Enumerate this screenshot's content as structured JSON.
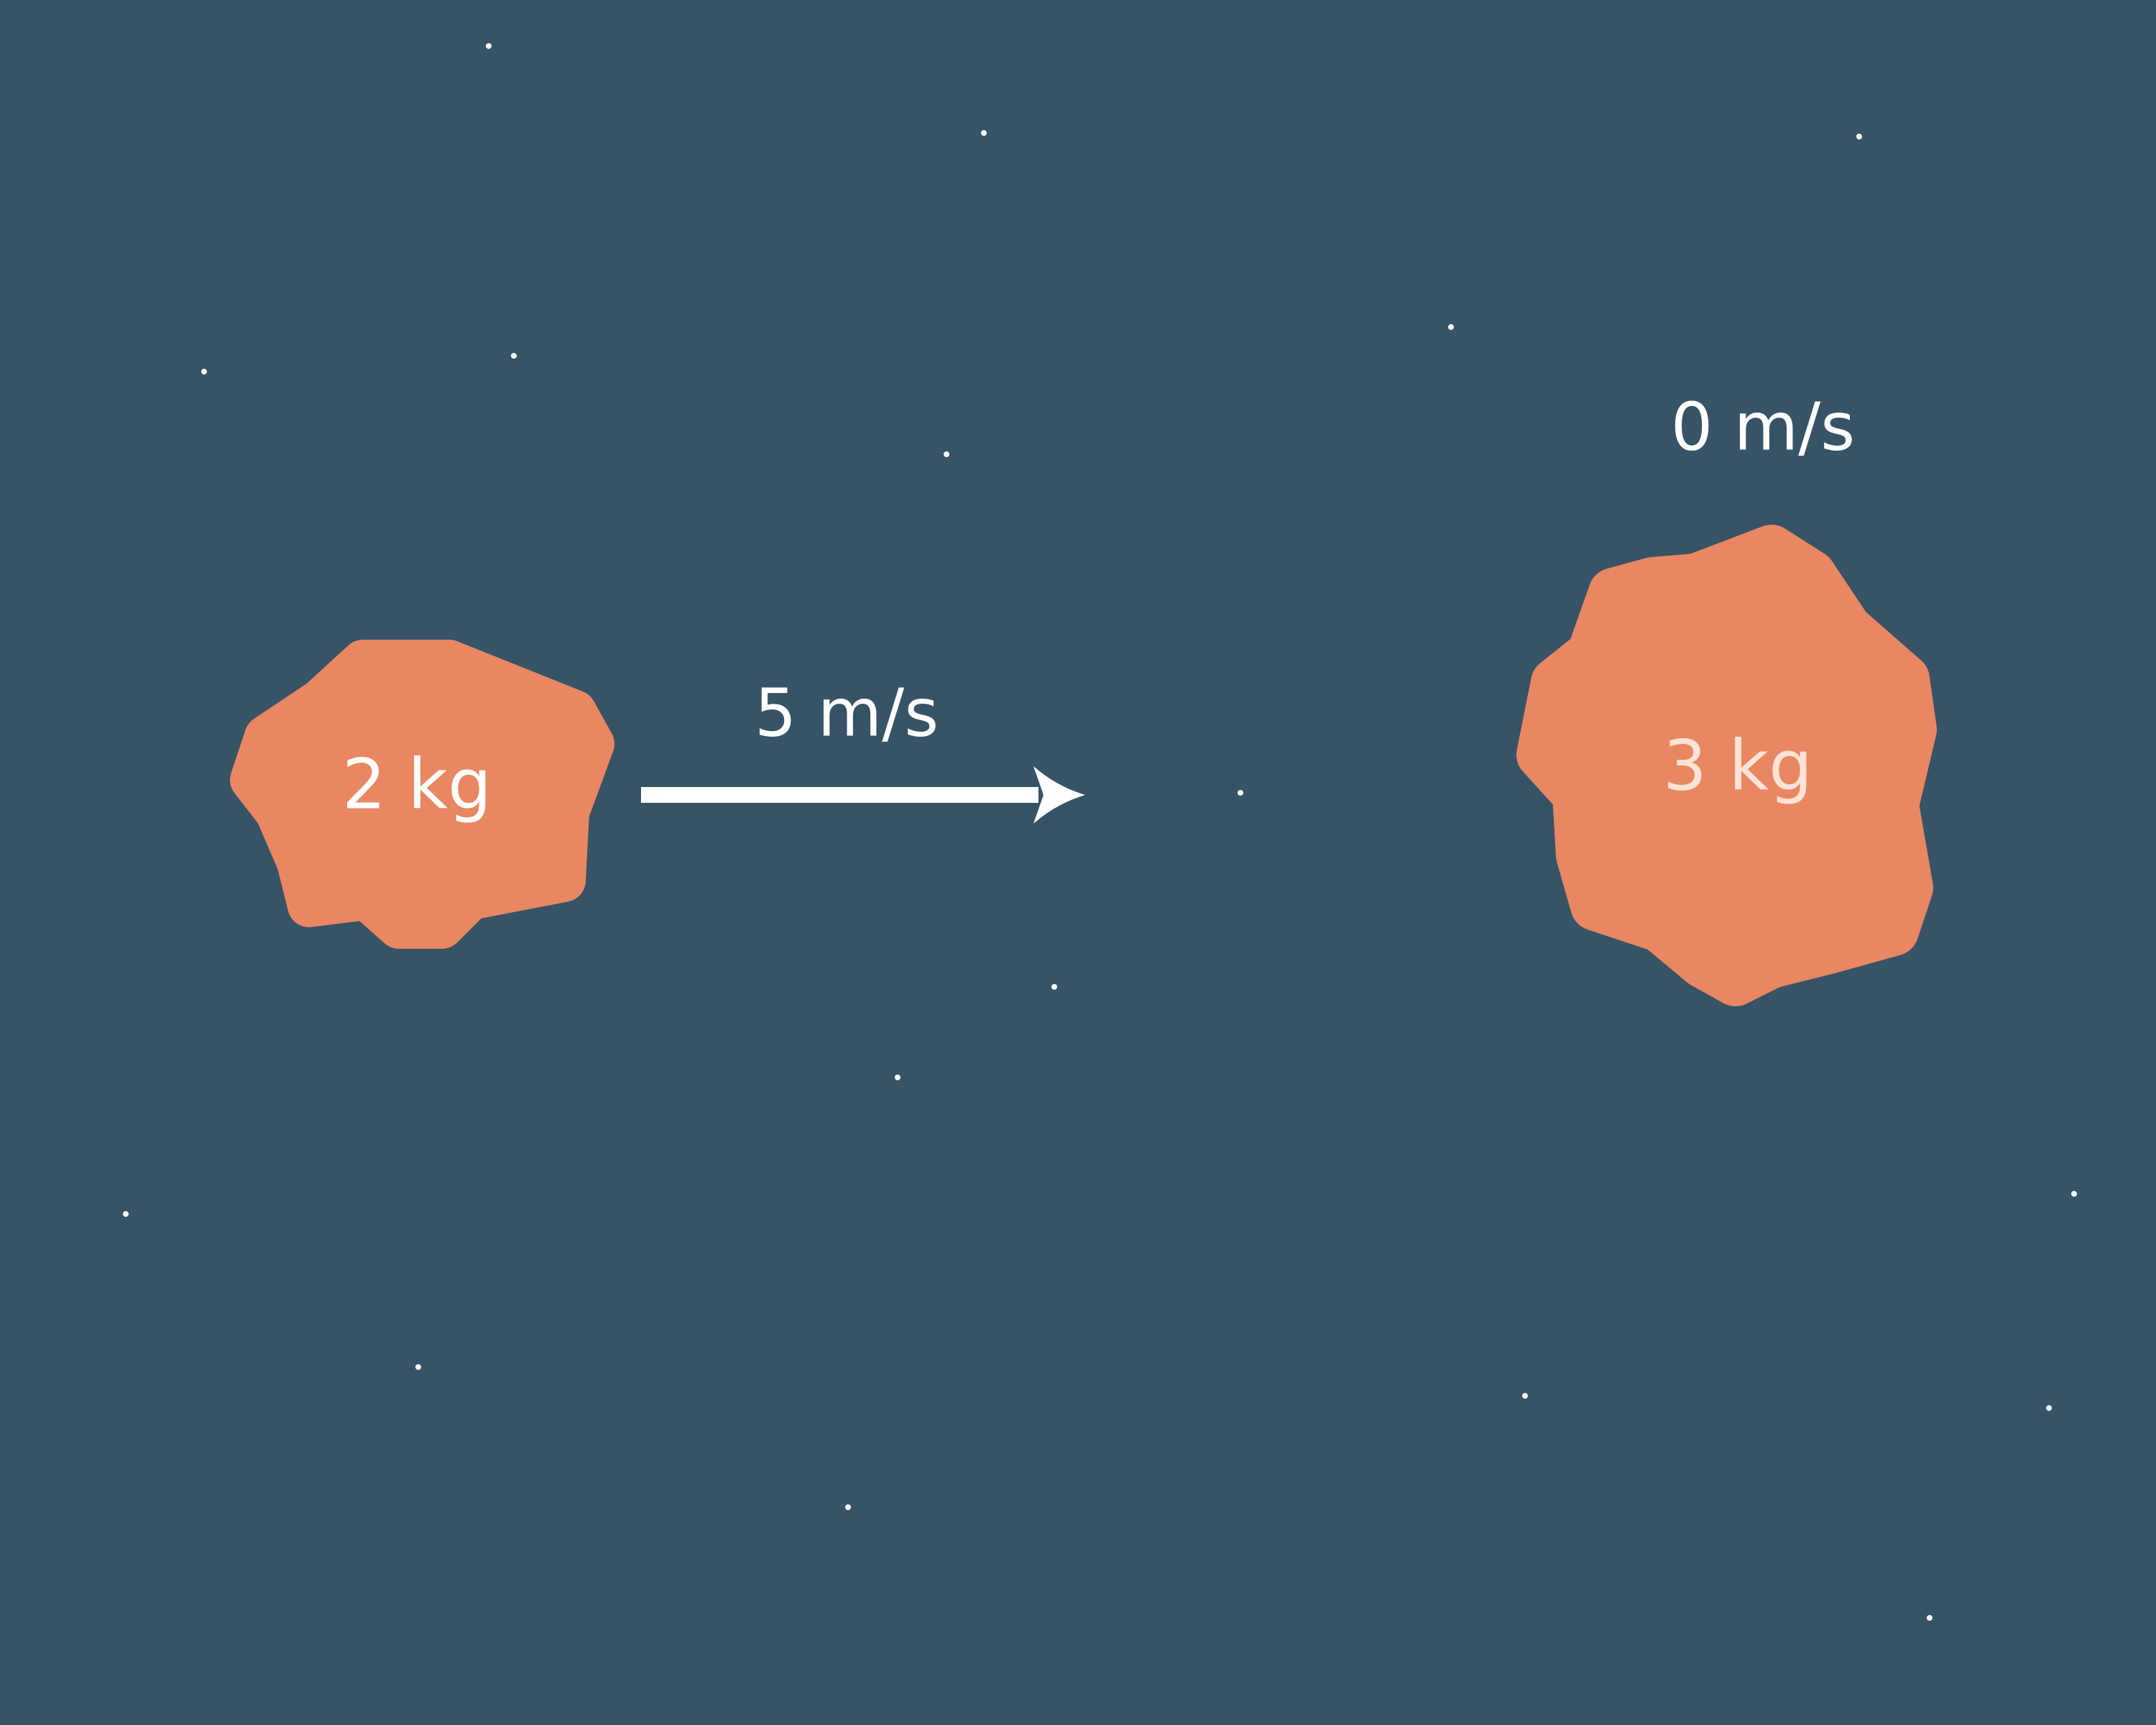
{
  "colors": {
    "background": "#375366",
    "body": "#E98762",
    "text": "#FFFFFF",
    "heavy_text": "#FBE3D6",
    "star": "#FFFFFF"
  },
  "bodies": [
    {
      "mass_label": "2 kg",
      "velocity_label": "5 m/s"
    },
    {
      "mass_label": "3 kg",
      "velocity_label": "0 m/s"
    }
  ],
  "arrow": {
    "icon": "arrow-right-icon"
  }
}
